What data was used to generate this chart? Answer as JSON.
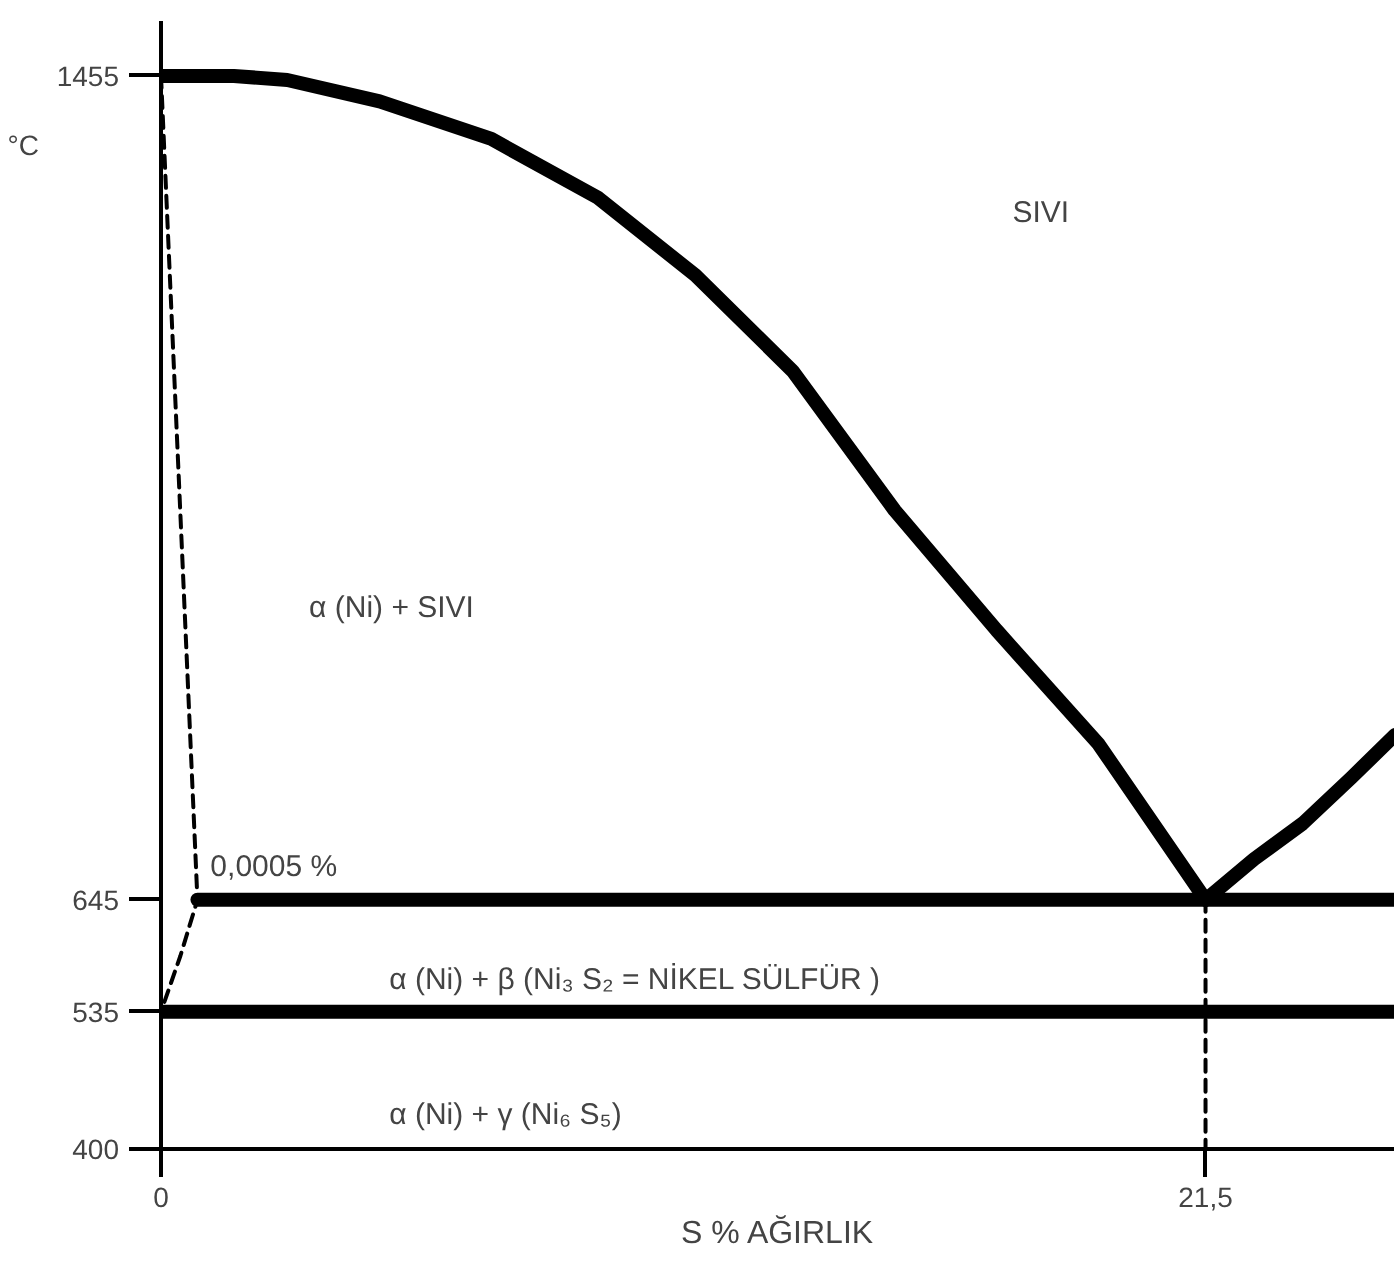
{
  "chart_data": {
    "type": "line",
    "xlabel": "S % AĞIRLIK",
    "ylabel": "°C",
    "xlim": [
      0,
      25.4
    ],
    "ylim": [
      400,
      1509
    ],
    "xticks": [
      0,
      {
        "value": 21.5,
        "label": "21,5"
      }
    ],
    "yticks": [
      400,
      535,
      645,
      1455
    ],
    "grid": false,
    "marker": "none",
    "series": [
      {
        "color": "#000000",
        "line_style": "solid",
        "x": [
          0,
          1.5,
          2.6,
          4.5,
          6.8,
          9,
          11,
          13,
          15.1,
          17.2,
          19.3,
          21.5
        ],
        "values": [
          1455,
          1455,
          1451,
          1430,
          1393,
          1335,
          1259,
          1165,
          1028,
          910,
          798,
          645
        ]
      },
      {
        "color": "#000000",
        "line_style": "solid",
        "x": [
          21.5,
          22.5,
          23.5,
          24.5,
          25.4
        ],
        "values": [
          645,
          685,
          720,
          765,
          807
        ]
      },
      {
        "color": "#000000",
        "line_style": "solid",
        "x": [
          0.75,
          25.4
        ],
        "values": [
          645,
          645
        ]
      },
      {
        "color": "#000000",
        "line_style": "solid",
        "x": [
          0,
          25.4
        ],
        "values": [
          535,
          535
        ]
      },
      {
        "color": "#000000",
        "line_style": "dashed",
        "x": [
          0,
          0.75,
          0.4,
          0
        ],
        "values": [
          1455,
          645,
          590,
          535
        ]
      },
      {
        "color": "#000000",
        "line_style": "dashed",
        "x": [
          21.5,
          21.5
        ],
        "values": [
          645,
          400
        ]
      }
    ],
    "annotations": [
      "SIVI",
      "α (Ni) + SIVI",
      "0,0005 %",
      "α (Ni) + β (Ni₃ S₂ = NİKEL SÜLFÜR )",
      "α (Ni) + γ (Ni₆ S₅)"
    ]
  }
}
